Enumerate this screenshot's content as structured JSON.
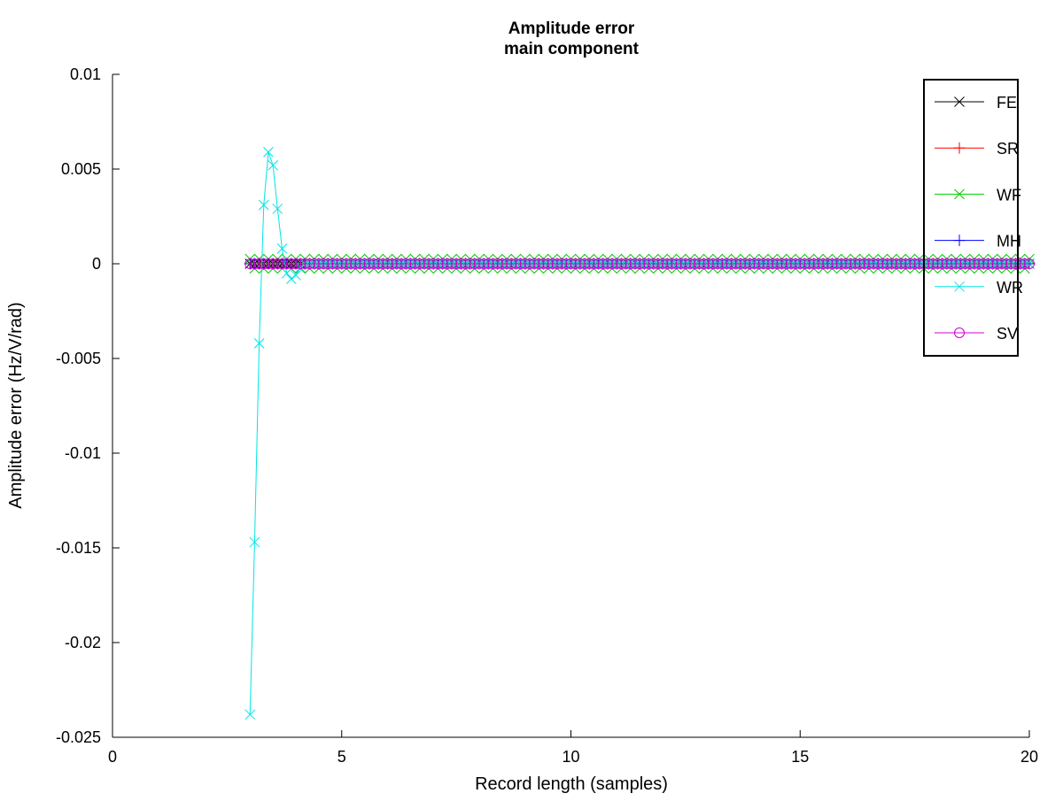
{
  "chart_data": {
    "type": "line",
    "title": "Amplitude error",
    "subtitle": "main component",
    "xlabel": "Record length (samples)",
    "ylabel": "Amplitude error (Hz/V/rad)",
    "xlim": [
      0,
      20
    ],
    "ylim": [
      -0.025,
      0.01
    ],
    "xticks": [
      0,
      5,
      10,
      15,
      20
    ],
    "xtick_labels": [
      "0",
      "5",
      "10",
      "15",
      "20"
    ],
    "yticks": [
      0.01,
      0.005,
      0,
      -0.005,
      -0.01,
      -0.015,
      -0.02,
      -0.025
    ],
    "ytick_labels": [
      "0.01",
      "0.005",
      "0",
      "-0.005",
      "-0.01",
      "-0.015",
      "-0.02",
      "-0.025"
    ],
    "grid": false,
    "legend_position": "top-right",
    "x_grid": {
      "start": 3,
      "end": 20,
      "step": 0.1
    },
    "series": [
      {
        "name": "FE",
        "color": "#000000",
        "marker": "x",
        "values": "~0 for all x",
        "wr_like": false
      },
      {
        "name": "SR",
        "color": "#ff0000",
        "marker": "+",
        "values": "~0 for all x"
      },
      {
        "name": "WF",
        "color": "#00cc00",
        "marker": "x",
        "note": "alternates about ±0.0003 around 0"
      },
      {
        "name": "MH",
        "color": "#0000ff",
        "marker": "+",
        "values": "~0 for all x"
      },
      {
        "name": "WR",
        "color": "#00e5e5",
        "marker": "x",
        "x": [
          3.0,
          3.1,
          3.2,
          3.3,
          3.4,
          3.5,
          3.6,
          3.7,
          3.8,
          3.9,
          4.0,
          4.1
        ],
        "y": [
          -0.0238,
          -0.0147,
          -0.0042,
          0.0031,
          0.0059,
          0.0052,
          0.0029,
          0.0008,
          -0.0005,
          -0.0008,
          -0.0006,
          -0.0002
        ],
        "tail_value": 0
      },
      {
        "name": "SV",
        "color": "#cc00cc",
        "marker": "o",
        "values": "~0 for all x"
      }
    ]
  }
}
